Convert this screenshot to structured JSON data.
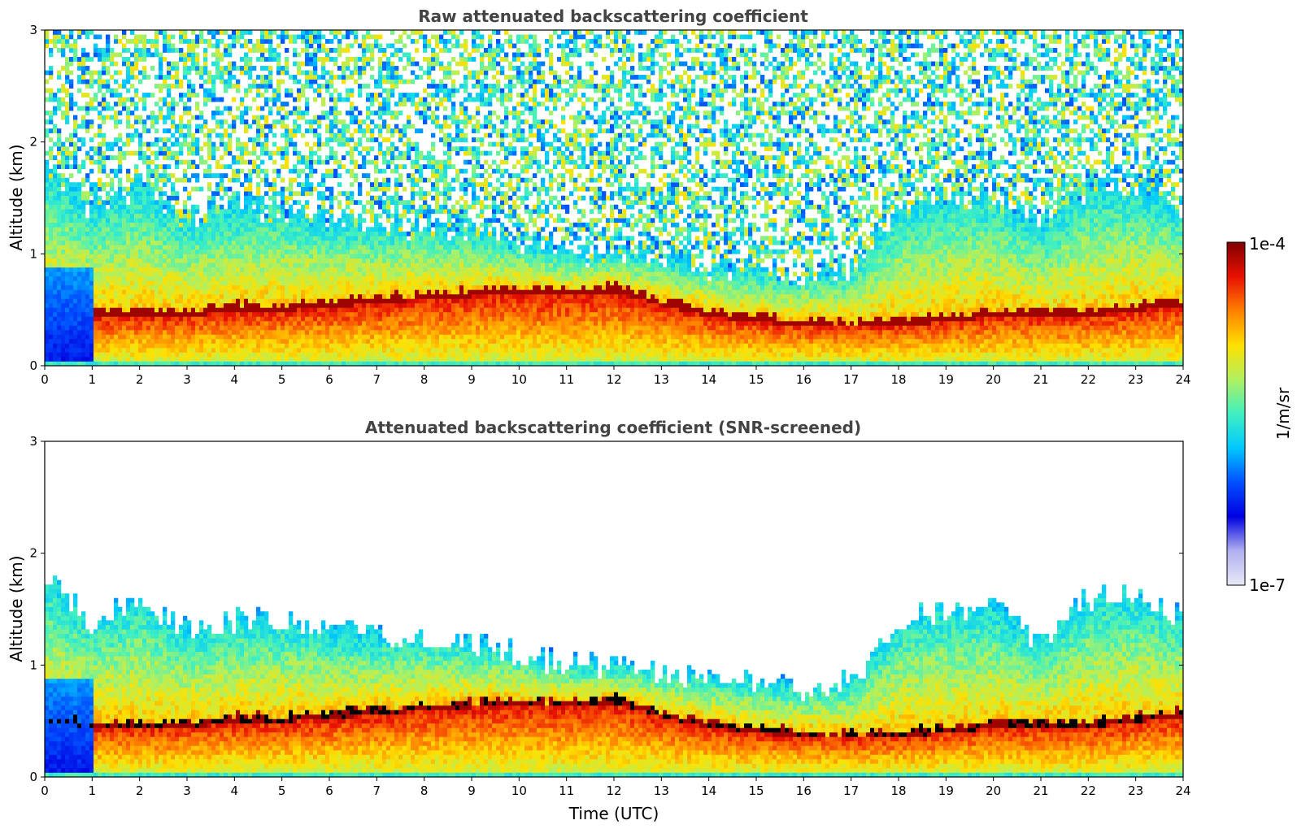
{
  "colors": {
    "colormap": [
      "#e8e8f8",
      "#b0b0f0",
      "#0000e0",
      "#0050ff",
      "#00c8ff",
      "#40f0c0",
      "#b0f060",
      "#ffe000",
      "#ff8000",
      "#e81000",
      "#800000"
    ],
    "screened_peak": "#000000",
    "frame": "#000000",
    "title": "#444444"
  },
  "chart_data": [
    {
      "type": "heatmap",
      "title": "Raw attenuated backscattering coefficient",
      "xlabel": "",
      "ylabel": "Altitude (km)",
      "xlim": [
        0,
        24
      ],
      "ylim": [
        0,
        3
      ],
      "x_ticks": [
        "0",
        "1",
        "2",
        "3",
        "4",
        "5",
        "6",
        "7",
        "8",
        "9",
        "10",
        "11",
        "12",
        "13",
        "14",
        "15",
        "16",
        "17",
        "18",
        "19",
        "20",
        "21",
        "22",
        "23",
        "24"
      ],
      "y_ticks": [
        "0",
        "1",
        "2",
        "3"
      ],
      "boundary_layer_top_km": [
        [
          0,
          0.55
        ],
        [
          1,
          0.5
        ],
        [
          2,
          0.5
        ],
        [
          3,
          0.5
        ],
        [
          4,
          0.55
        ],
        [
          5,
          0.55
        ],
        [
          6,
          0.58
        ],
        [
          7,
          0.62
        ],
        [
          8,
          0.65
        ],
        [
          9,
          0.68
        ],
        [
          10,
          0.7
        ],
        [
          11,
          0.68
        ],
        [
          12,
          0.72
        ],
        [
          13,
          0.6
        ],
        [
          14,
          0.5
        ],
        [
          15,
          0.45
        ],
        [
          16,
          0.42
        ],
        [
          17,
          0.4
        ],
        [
          18,
          0.42
        ],
        [
          19,
          0.45
        ],
        [
          20,
          0.5
        ],
        [
          21,
          0.5
        ],
        [
          22,
          0.5
        ],
        [
          23,
          0.55
        ],
        [
          24,
          0.6
        ]
      ],
      "cloud_top_km": [
        [
          0,
          1.8
        ],
        [
          1,
          1.4
        ],
        [
          2,
          1.6
        ],
        [
          3,
          1.3
        ],
        [
          4,
          1.4
        ],
        [
          5,
          1.4
        ],
        [
          6,
          1.3
        ],
        [
          7,
          1.25
        ],
        [
          8,
          1.25
        ],
        [
          9,
          1.2
        ],
        [
          10,
          1.1
        ],
        [
          11,
          1.0
        ],
        [
          12,
          1.0
        ],
        [
          13,
          0.95
        ],
        [
          14,
          0.9
        ],
        [
          15,
          0.85
        ],
        [
          16,
          0.8
        ],
        [
          17,
          0.85
        ],
        [
          18,
          1.4
        ],
        [
          19,
          1.5
        ],
        [
          20,
          1.5
        ],
        [
          21,
          1.2
        ],
        [
          22,
          1.6
        ],
        [
          23,
          1.6
        ],
        [
          24,
          1.4
        ]
      ],
      "noise_above_clouds": true,
      "snr_screened": false
    },
    {
      "type": "heatmap",
      "title": "Attenuated backscattering coefficient (SNR-screened)",
      "xlabel": "Time (UTC)",
      "ylabel": "Altitude (km)",
      "xlim": [
        0,
        24
      ],
      "ylim": [
        0,
        3
      ],
      "x_ticks": [
        "0",
        "1",
        "2",
        "3",
        "4",
        "5",
        "6",
        "7",
        "8",
        "9",
        "10",
        "11",
        "12",
        "13",
        "14",
        "15",
        "16",
        "17",
        "18",
        "19",
        "20",
        "21",
        "22",
        "23",
        "24"
      ],
      "y_ticks": [
        "0",
        "1",
        "2",
        "3"
      ],
      "boundary_layer_top_km": [
        [
          0,
          0.55
        ],
        [
          1,
          0.5
        ],
        [
          2,
          0.5
        ],
        [
          3,
          0.5
        ],
        [
          4,
          0.55
        ],
        [
          5,
          0.55
        ],
        [
          6,
          0.58
        ],
        [
          7,
          0.62
        ],
        [
          8,
          0.65
        ],
        [
          9,
          0.68
        ],
        [
          10,
          0.7
        ],
        [
          11,
          0.68
        ],
        [
          12,
          0.72
        ],
        [
          13,
          0.6
        ],
        [
          14,
          0.5
        ],
        [
          15,
          0.45
        ],
        [
          16,
          0.42
        ],
        [
          17,
          0.4
        ],
        [
          18,
          0.42
        ],
        [
          19,
          0.45
        ],
        [
          20,
          0.5
        ],
        [
          21,
          0.5
        ],
        [
          22,
          0.5
        ],
        [
          23,
          0.55
        ],
        [
          24,
          0.6
        ]
      ],
      "cloud_top_km": [
        [
          0,
          1.8
        ],
        [
          1,
          1.4
        ],
        [
          2,
          1.6
        ],
        [
          3,
          1.3
        ],
        [
          4,
          1.4
        ],
        [
          5,
          1.4
        ],
        [
          6,
          1.3
        ],
        [
          7,
          1.25
        ],
        [
          8,
          1.25
        ],
        [
          9,
          1.2
        ],
        [
          10,
          1.1
        ],
        [
          11,
          1.0
        ],
        [
          12,
          1.0
        ],
        [
          13,
          0.95
        ],
        [
          14,
          0.9
        ],
        [
          15,
          0.85
        ],
        [
          16,
          0.8
        ],
        [
          17,
          0.85
        ],
        [
          18,
          1.4
        ],
        [
          19,
          1.5
        ],
        [
          20,
          1.5
        ],
        [
          21,
          1.2
        ],
        [
          22,
          1.6
        ],
        [
          23,
          1.6
        ],
        [
          24,
          1.4
        ]
      ],
      "noise_above_clouds": false,
      "snr_screened": true
    }
  ],
  "colorbar": {
    "label": "1/m/sr",
    "min_label": "1e-7",
    "max_label": "1e-4",
    "range": [
      1e-07,
      0.0001
    ],
    "scale": "log"
  }
}
